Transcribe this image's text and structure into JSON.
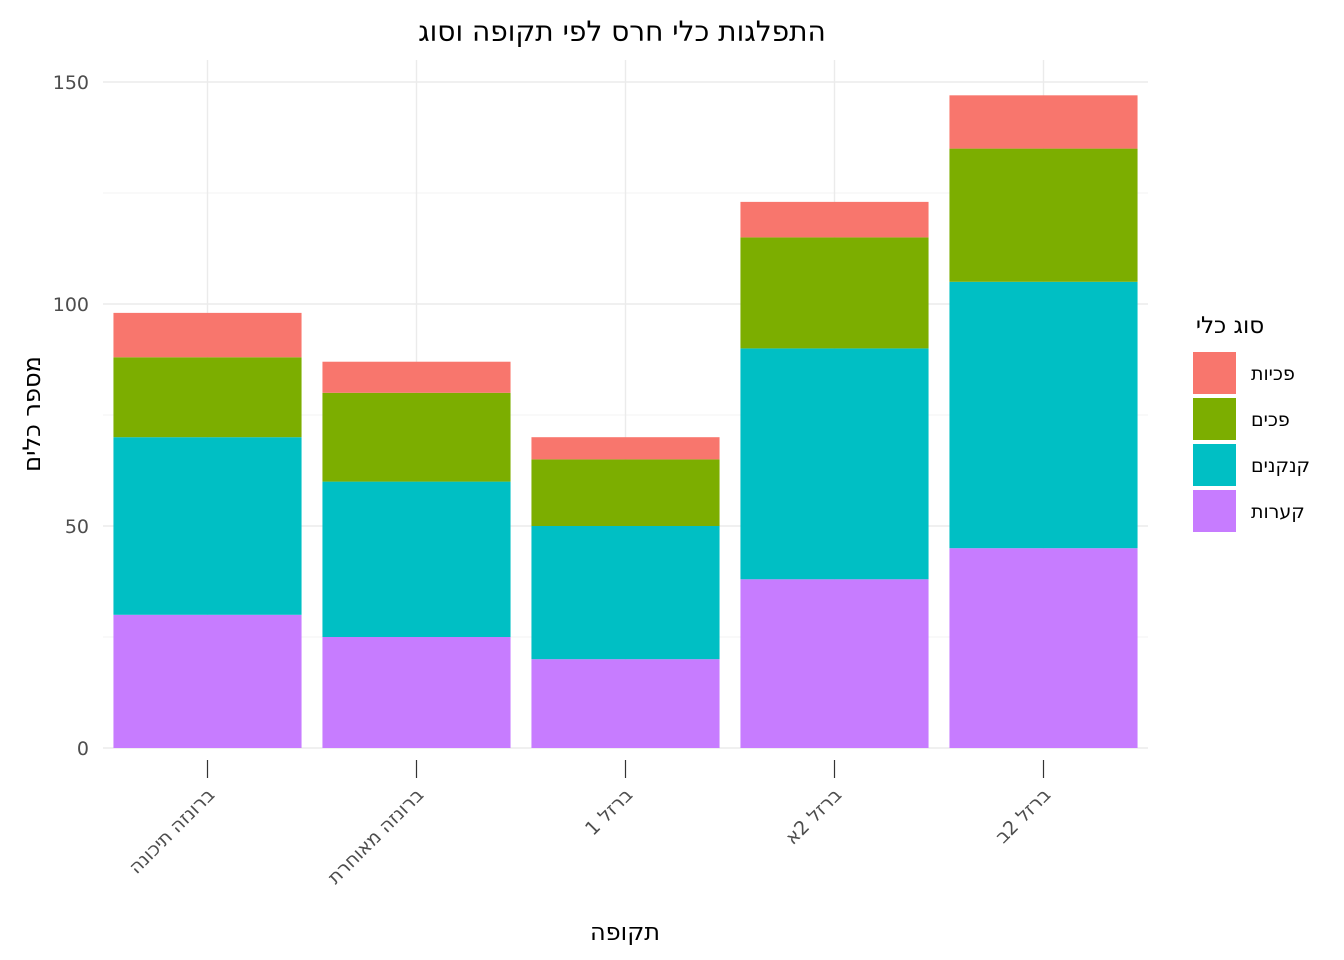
{
  "chart_data": {
    "type": "bar",
    "stacked": true,
    "title": "התפלגות כלי חרס לפי תקופה וסוג",
    "xlabel": "תקופה",
    "ylabel": "מספר כלים",
    "ylim": [
      0,
      150
    ],
    "yticks": [
      0,
      50,
      100,
      150
    ],
    "categories": [
      "ברונזה תיכונה",
      "ברונזה מאוחרת",
      "ברזל 1",
      "ברזל 2א",
      "ברזל 2ב"
    ],
    "series": [
      {
        "name": "קערות",
        "color": "#C77CFF",
        "values": [
          30,
          25,
          20,
          38,
          45
        ]
      },
      {
        "name": "קנקנים",
        "color": "#00BFC4",
        "values": [
          40,
          35,
          30,
          52,
          60
        ]
      },
      {
        "name": "פכים",
        "color": "#7CAE00",
        "values": [
          18,
          20,
          15,
          25,
          30
        ]
      },
      {
        "name": "פכיות",
        "color": "#F8766D",
        "values": [
          10,
          7,
          5,
          8,
          12
        ]
      }
    ],
    "legend": {
      "title": "סוג כלי",
      "placement": "right",
      "order": [
        "פכיות",
        "פכים",
        "קנקנים",
        "קערות"
      ]
    },
    "grid": true
  }
}
